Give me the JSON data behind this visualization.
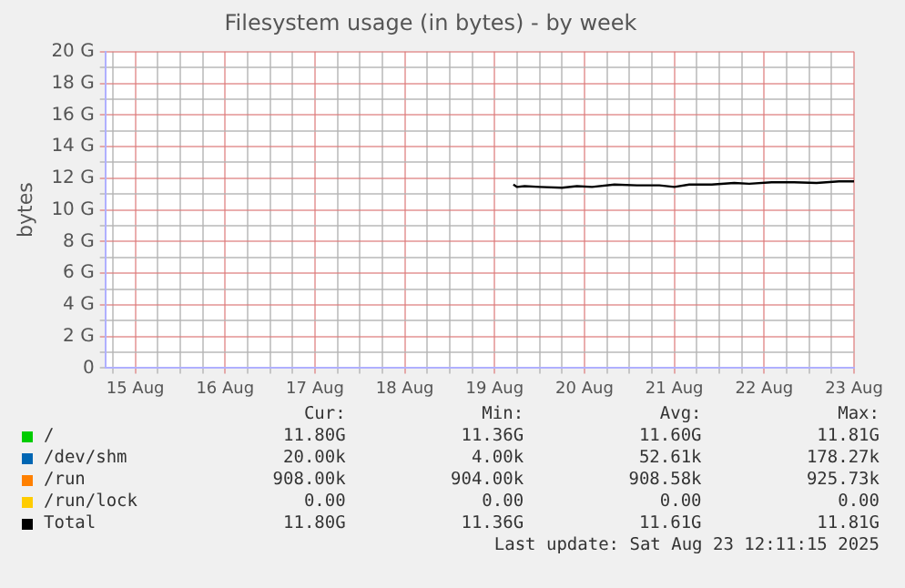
{
  "chart_data": {
    "type": "line",
    "title": "Filesystem usage (in bytes) - by week",
    "ylabel": "bytes",
    "xlim": [
      "2025-08-15T04:00",
      "2025-08-23T12:00"
    ],
    "xticks": [
      {
        "value": "2025-08-15T06:00",
        "label": null
      },
      {
        "value": "2025-08-15T12:00",
        "label": "15 Aug"
      },
      {
        "value": "2025-08-15T18:00",
        "label": null
      },
      {
        "value": "2025-08-16T00:00",
        "label": null
      },
      {
        "value": "2025-08-16T06:00",
        "label": null
      },
      {
        "value": "2025-08-16T12:00",
        "label": "16 Aug"
      },
      {
        "value": "2025-08-16T18:00",
        "label": null
      },
      {
        "value": "2025-08-17T00:00",
        "label": null
      },
      {
        "value": "2025-08-17T06:00",
        "label": null
      },
      {
        "value": "2025-08-17T12:00",
        "label": "17 Aug"
      },
      {
        "value": "2025-08-17T18:00",
        "label": null
      },
      {
        "value": "2025-08-18T00:00",
        "label": null
      },
      {
        "value": "2025-08-18T06:00",
        "label": null
      },
      {
        "value": "2025-08-18T12:00",
        "label": "18 Aug"
      },
      {
        "value": "2025-08-18T18:00",
        "label": null
      },
      {
        "value": "2025-08-19T00:00",
        "label": null
      },
      {
        "value": "2025-08-19T06:00",
        "label": null
      },
      {
        "value": "2025-08-19T12:00",
        "label": "19 Aug"
      },
      {
        "value": "2025-08-19T18:00",
        "label": null
      },
      {
        "value": "2025-08-20T00:00",
        "label": null
      },
      {
        "value": "2025-08-20T06:00",
        "label": null
      },
      {
        "value": "2025-08-20T12:00",
        "label": "20 Aug"
      },
      {
        "value": "2025-08-20T18:00",
        "label": null
      },
      {
        "value": "2025-08-21T00:00",
        "label": null
      },
      {
        "value": "2025-08-21T06:00",
        "label": null
      },
      {
        "value": "2025-08-21T12:00",
        "label": "21 Aug"
      },
      {
        "value": "2025-08-21T18:00",
        "label": null
      },
      {
        "value": "2025-08-22T00:00",
        "label": null
      },
      {
        "value": "2025-08-22T06:00",
        "label": null
      },
      {
        "value": "2025-08-22T12:00",
        "label": "22 Aug"
      },
      {
        "value": "2025-08-22T18:00",
        "label": null
      },
      {
        "value": "2025-08-23T00:00",
        "label": null
      },
      {
        "value": "2025-08-23T06:00",
        "label": null
      },
      {
        "value": "2025-08-23T12:00",
        "label": "23 Aug"
      }
    ],
    "ylim": [
      0,
      20
    ],
    "yticks": [
      0,
      {
        "value": 1,
        "label": null
      },
      {
        "value": 2,
        "label": "2 G"
      },
      {
        "value": 3,
        "label": null
      },
      {
        "value": 4,
        "label": "4 G"
      },
      {
        "value": 5,
        "label": null
      },
      {
        "value": 6,
        "label": "6 G"
      },
      {
        "value": 7,
        "label": null
      },
      {
        "value": 8,
        "label": "8 G"
      },
      {
        "value": 9,
        "label": null
      },
      {
        "value": 10,
        "label": "10 G"
      },
      {
        "value": 11,
        "label": null
      },
      {
        "value": 12,
        "label": "12 G"
      },
      {
        "value": 13,
        "label": null
      },
      {
        "value": 14,
        "label": "14 G"
      },
      {
        "value": 15,
        "label": null
      },
      {
        "value": 16,
        "label": "16 G"
      },
      {
        "value": 17,
        "label": null
      },
      {
        "value": 18,
        "label": "18 G"
      },
      {
        "value": 19,
        "label": null
      },
      {
        "value": 20,
        "label": "20 G"
      }
    ],
    "grid": true,
    "legend": "bottom",
    "marker": "none",
    "line_style": "solid",
    "x": [
      "2025-08-19T17:00",
      "2025-08-19T18:00",
      "2025-08-19T20:00",
      "2025-08-20T00:00",
      "2025-08-20T06:00",
      "2025-08-20T10:00",
      "2025-08-20T14:00",
      "2025-08-20T20:00",
      "2025-08-21T02:00",
      "2025-08-21T08:00",
      "2025-08-21T12:00",
      "2025-08-21T16:00",
      "2025-08-21T22:00",
      "2025-08-22T04:00",
      "2025-08-22T08:00",
      "2025-08-22T14:00",
      "2025-08-22T20:00",
      "2025-08-23T02:00",
      "2025-08-23T08:00",
      "2025-08-23T12:00"
    ],
    "series": [
      {
        "name": "/",
        "color": "#00cc00",
        "values": [
          null,
          null,
          null,
          null,
          null,
          null,
          null,
          null,
          null,
          null,
          null,
          null,
          null,
          null,
          null,
          null,
          null,
          null,
          null,
          null
        ]
      },
      {
        "name": "/dev/shm",
        "color": "#0066b3",
        "values": [
          null,
          null,
          null,
          null,
          null,
          null,
          null,
          null,
          null,
          null,
          null,
          null,
          null,
          null,
          null,
          null,
          null,
          null,
          null,
          null
        ]
      },
      {
        "name": "/run",
        "color": "#ff8000",
        "values": [
          null,
          null,
          null,
          null,
          null,
          null,
          null,
          null,
          null,
          null,
          null,
          null,
          null,
          null,
          null,
          null,
          null,
          null,
          null,
          null
        ]
      },
      {
        "name": "/run/lock",
        "color": "#ffcc00",
        "values": [
          null,
          null,
          null,
          null,
          null,
          null,
          null,
          null,
          null,
          null,
          null,
          null,
          null,
          null,
          null,
          null,
          null,
          null,
          null,
          null
        ]
      },
      {
        "name": "Total",
        "color": "#000000",
        "values": [
          11.6,
          11.45,
          11.5,
          11.45,
          11.4,
          11.5,
          11.45,
          11.6,
          11.55,
          11.55,
          11.45,
          11.6,
          11.6,
          11.7,
          11.65,
          11.75,
          11.75,
          11.7,
          11.8,
          11.8
        ]
      }
    ],
    "annotations": [
      "Cur:",
      "Min:",
      "Avg:",
      "Max:",
      "11.80G",
      "11.36G",
      "11.60G",
      "11.81G",
      "20.00k",
      "4.00k",
      "52.61k",
      "178.27k",
      "908.00k",
      "904.00k",
      "908.58k",
      "925.73k",
      "0.00",
      "0.00",
      "0.00",
      "0.00",
      "11.80G",
      "11.36G",
      "11.61G",
      "11.81G",
      "Last update: Sat Aug 23 12:11:15 2025"
    ]
  }
}
